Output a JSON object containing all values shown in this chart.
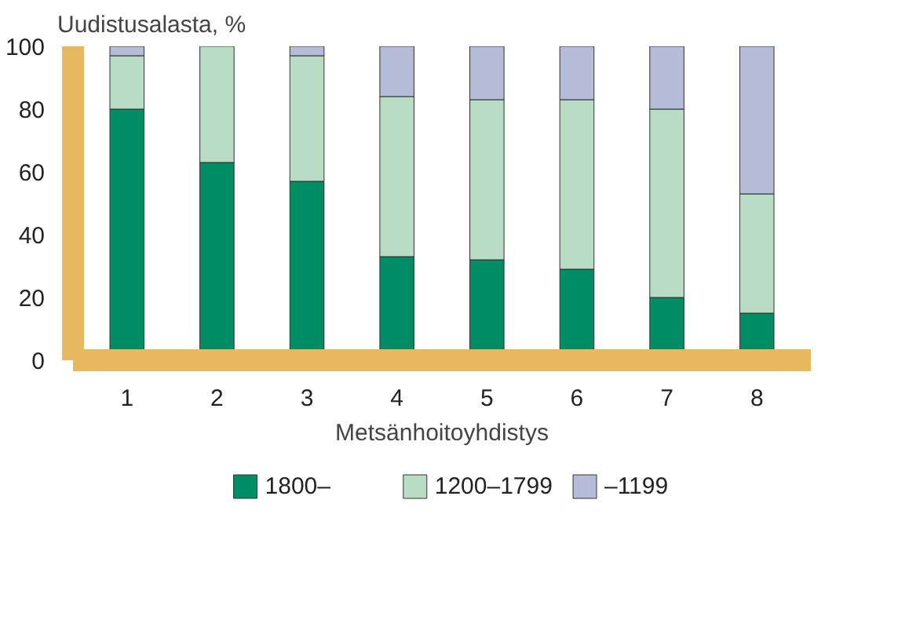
{
  "chart_data": {
    "type": "bar",
    "stacked": true,
    "ylabel": "Uudistusalasta, %",
    "xlabel": "Metsänhoitoyhdistys",
    "categories": [
      "1",
      "2",
      "3",
      "4",
      "5",
      "6",
      "7",
      "8"
    ],
    "series": [
      {
        "name": "1800–",
        "color": "#008c64",
        "values": [
          80,
          63,
          57,
          33,
          32,
          29,
          20,
          15
        ]
      },
      {
        "name": "1200–1799",
        "color": "#b8dcc4",
        "values": [
          17,
          37,
          40,
          51,
          51,
          54,
          60,
          38
        ]
      },
      {
        "name": "–1199",
        "color": "#b4bcd8",
        "values": [
          3,
          0,
          3,
          16,
          17,
          17,
          20,
          47
        ]
      }
    ],
    "ylim": [
      0,
      100
    ],
    "yticks": [
      0,
      20,
      40,
      60,
      80,
      100
    ],
    "grid": false,
    "legend": "bottom"
  }
}
